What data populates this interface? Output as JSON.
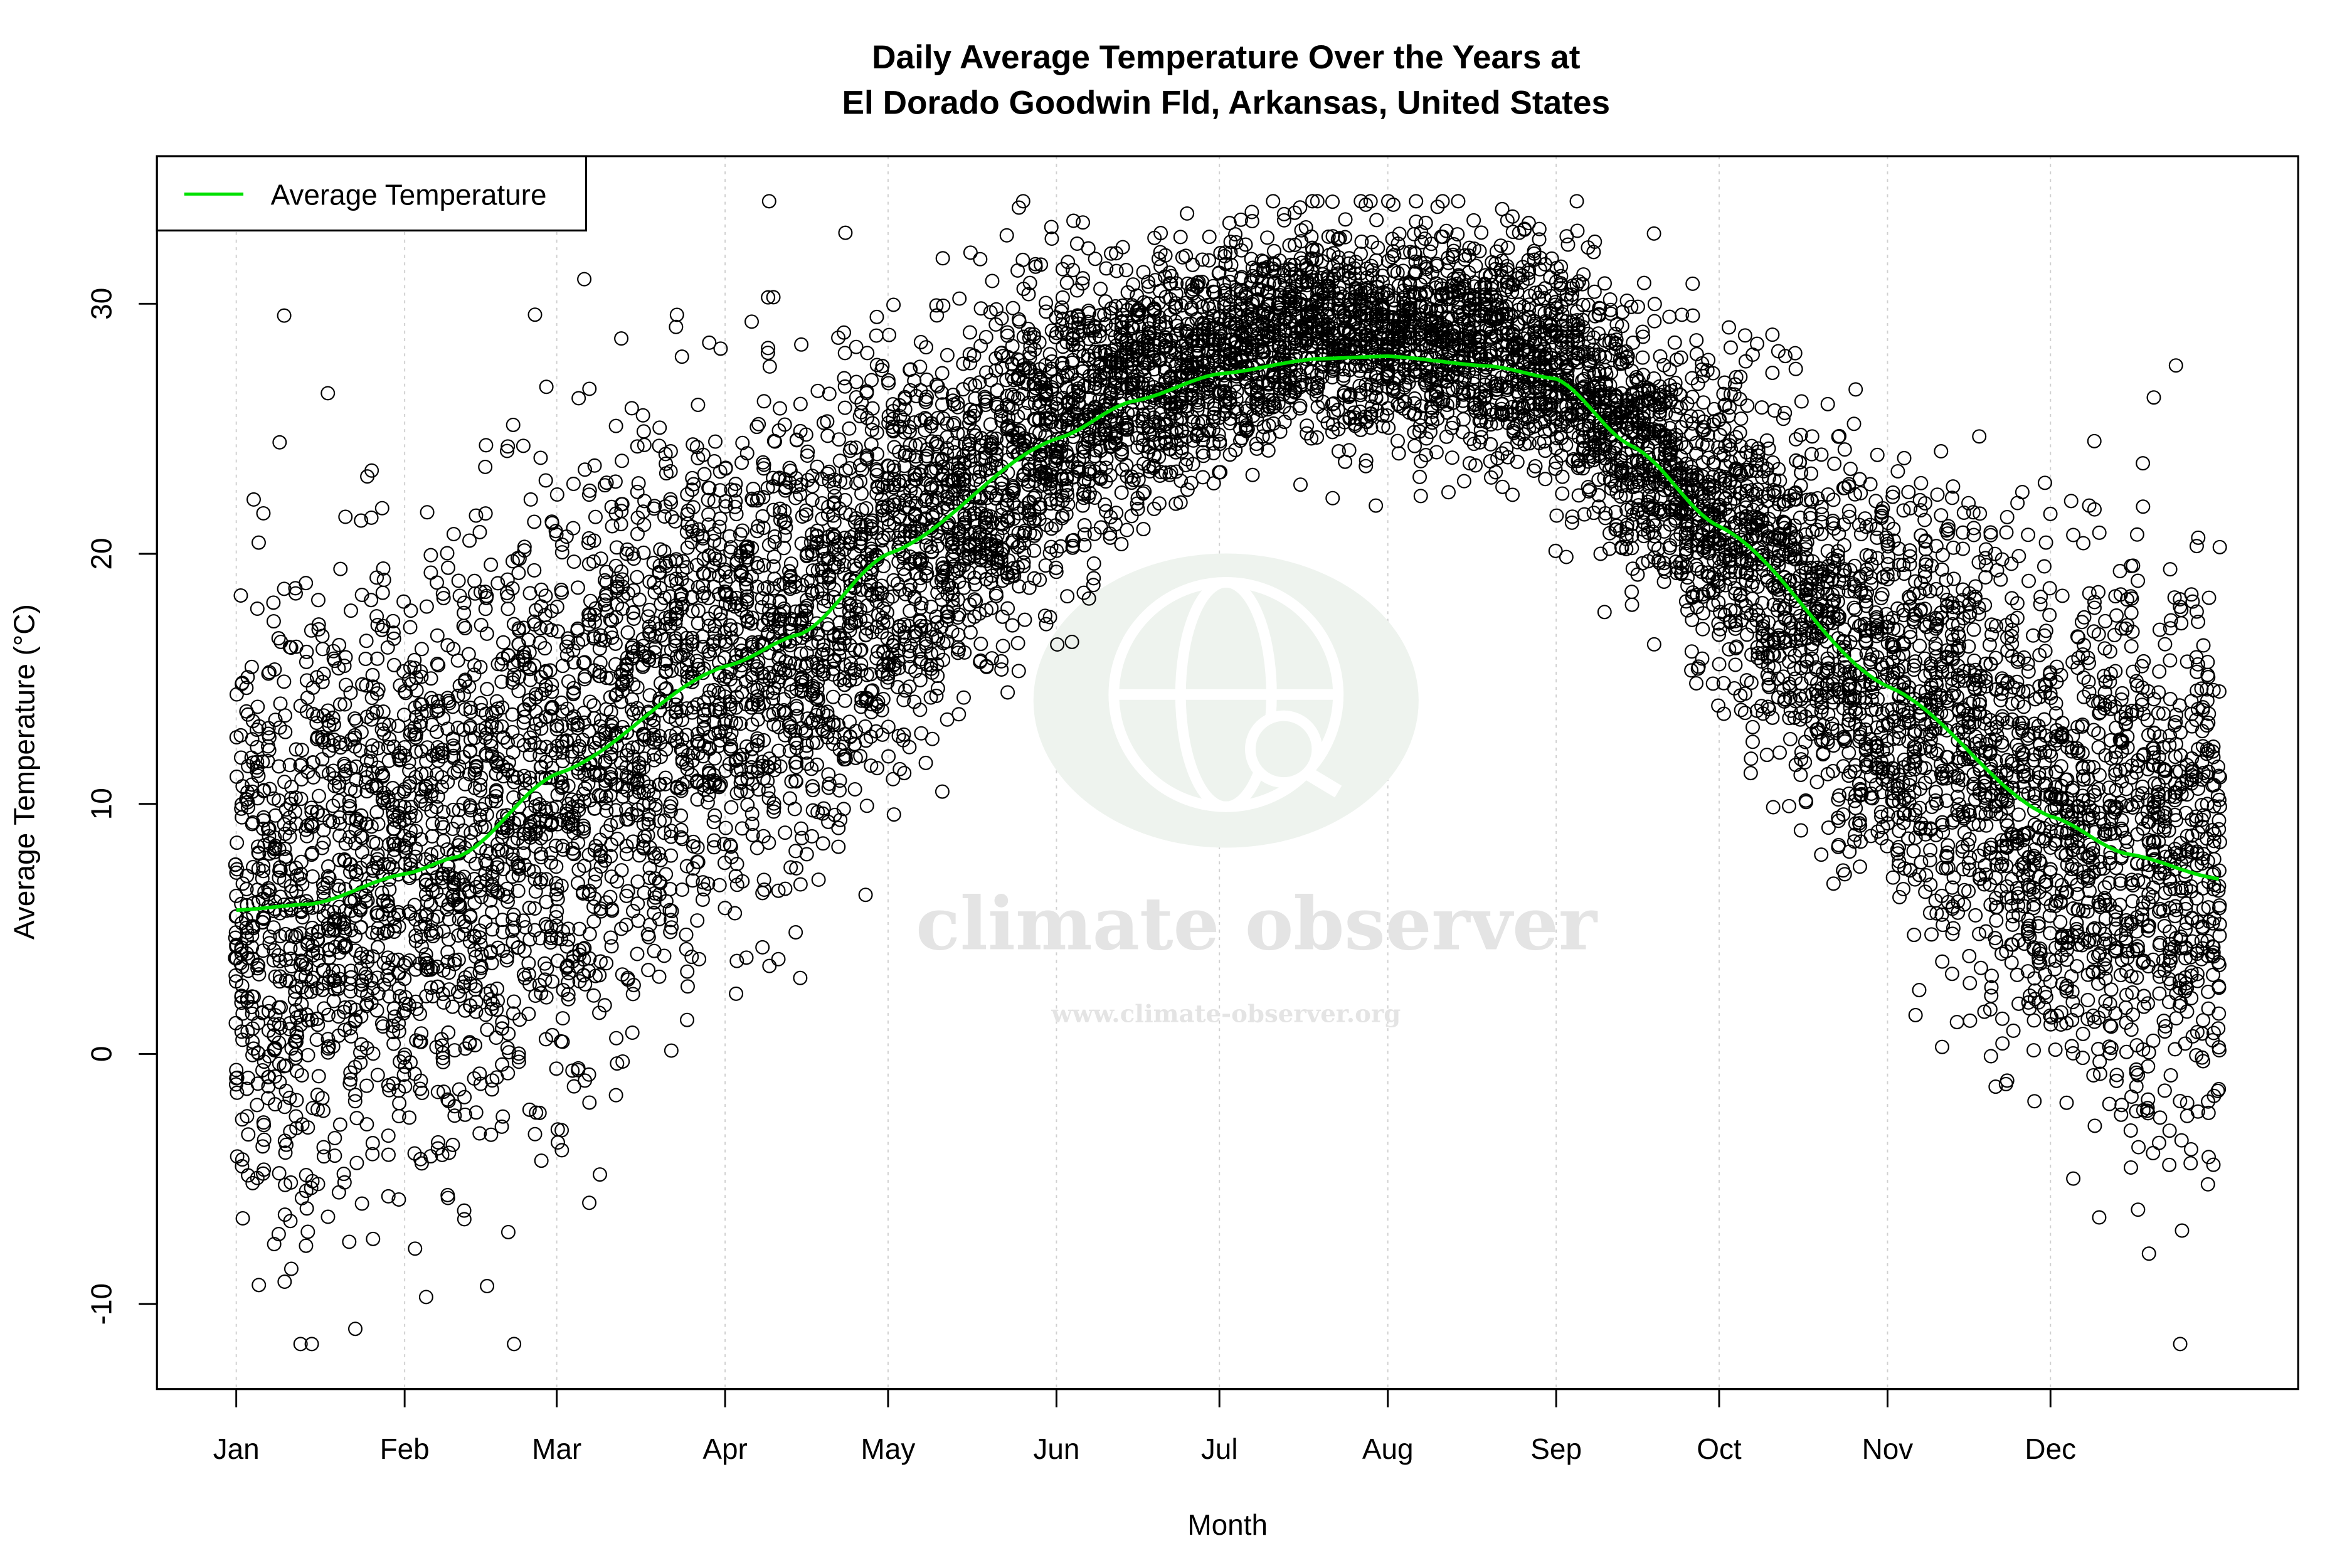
{
  "chart_data": {
    "type": "scatter",
    "title": "Daily Average Temperature Over the Years at",
    "subtitle": "El Dorado Goodwin Fld, Arkansas, United States",
    "xlabel": "Month",
    "ylabel": "Average Temperature (°C)",
    "x_unit": "day of year",
    "xlim": [
      -13.6,
      380.6
    ],
    "ylim": [
      -13.4,
      35.9
    ],
    "x_ticks": [
      {
        "day": 1,
        "label": "Jan"
      },
      {
        "day": 32,
        "label": "Feb"
      },
      {
        "day": 60,
        "label": "Mar"
      },
      {
        "day": 91,
        "label": "Apr"
      },
      {
        "day": 121,
        "label": "May"
      },
      {
        "day": 152,
        "label": "Jun"
      },
      {
        "day": 182,
        "label": "Jul"
      },
      {
        "day": 213,
        "label": "Aug"
      },
      {
        "day": 244,
        "label": "Sep"
      },
      {
        "day": 274,
        "label": "Oct"
      },
      {
        "day": 305,
        "label": "Nov"
      },
      {
        "day": 335,
        "label": "Dec"
      }
    ],
    "y_ticks": [
      {
        "value": -10,
        "label": "-10"
      },
      {
        "value": 0,
        "label": "0"
      },
      {
        "value": 10,
        "label": "10"
      },
      {
        "value": 20,
        "label": "20"
      },
      {
        "value": 30,
        "label": "30"
      }
    ],
    "grid": "vertical dotted at month ticks",
    "legend": {
      "position": "top-left",
      "entries": [
        {
          "label": "Average Temperature",
          "color": "#00e000"
        }
      ]
    },
    "series": [
      {
        "name": "Average Temperature",
        "kind": "smoothed line",
        "color": "#00e000",
        "points": [
          [
            1,
            5.75
          ],
          [
            15,
            6.0
          ],
          [
            32,
            7.2
          ],
          [
            42,
            7.9
          ],
          [
            60,
            11.2
          ],
          [
            91,
            15.5
          ],
          [
            105,
            16.8
          ],
          [
            121,
            20.0
          ],
          [
            152,
            24.6
          ],
          [
            166,
            26.1
          ],
          [
            182,
            27.2
          ],
          [
            200,
            27.8
          ],
          [
            213,
            27.9
          ],
          [
            232,
            27.5
          ],
          [
            244,
            27.0
          ],
          [
            258,
            24.3
          ],
          [
            274,
            21.1
          ],
          [
            305,
            14.7
          ],
          [
            335,
            9.5
          ],
          [
            349,
            8.0
          ],
          [
            366,
            7.0
          ]
        ]
      },
      {
        "kind": "scatter (open circles), daily observations across years",
        "color": "#000000",
        "observed_range": [
          -11.6,
          34.1
        ],
        "spread_sd_by_month": {
          "Jan": 6.2,
          "Feb": 6.0,
          "Mar": 5.5,
          "Apr": 4.6,
          "May": 3.6,
          "Jun": 2.4,
          "Jul": 2.0,
          "Aug": 2.2,
          "Sep": 2.6,
          "Oct": 3.6,
          "Nov": 4.6,
          "Dec": 5.6
        }
      }
    ]
  },
  "watermark": {
    "name": "climate observer",
    "url": "www.climate-observer.org",
    "colors": {
      "circle": "#eef3ee",
      "text": "#e4e4e4"
    }
  }
}
